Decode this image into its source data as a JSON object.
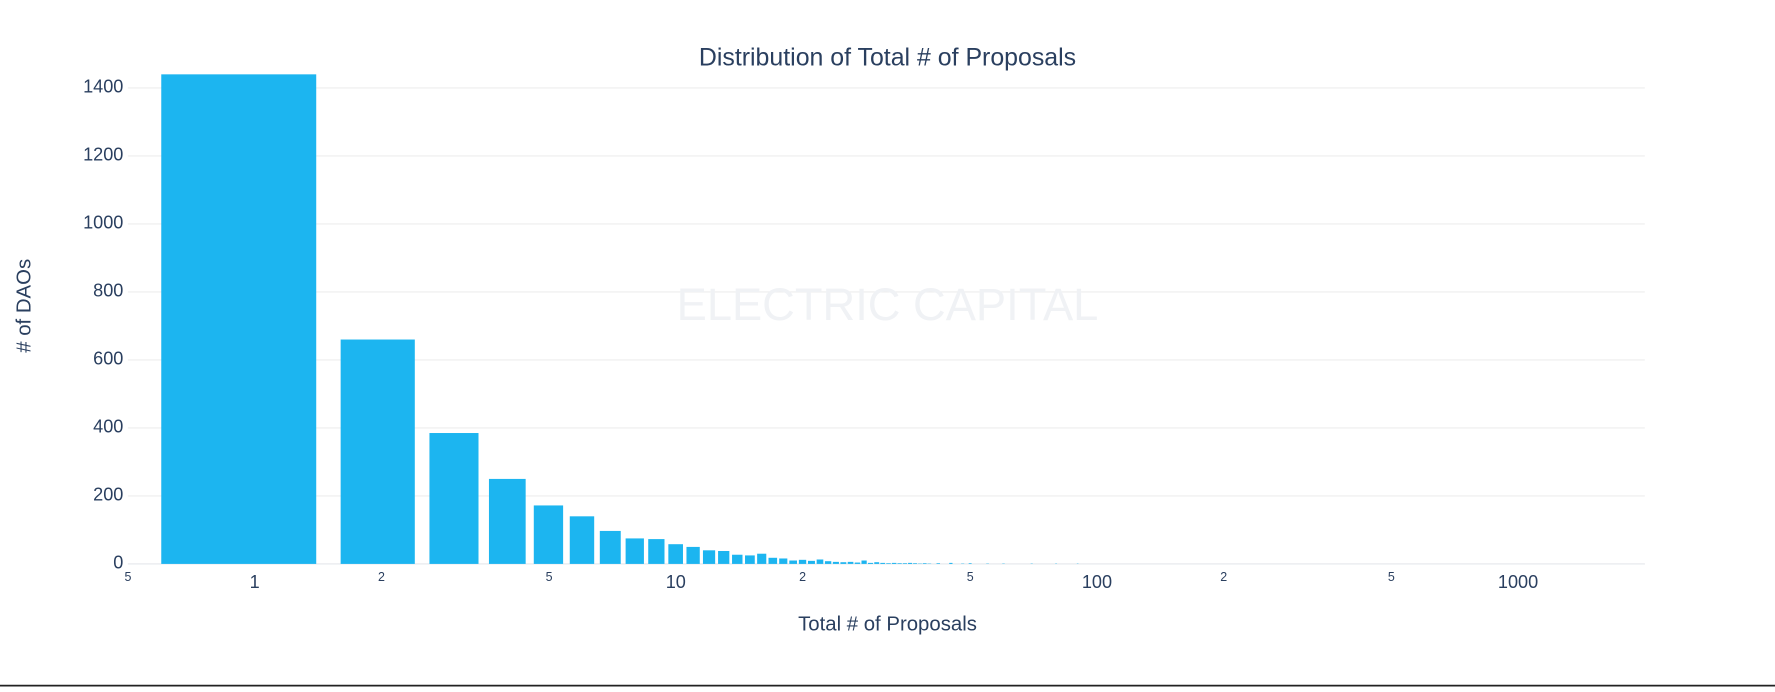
{
  "chart_data": {
    "type": "bar",
    "title": "Distribution of Total # of Proposals",
    "watermark": "ELECTRIC CAPITAL",
    "x_label": "Total # of Proposals",
    "y_label": "# of DAOs",
    "x_scale": "log",
    "color": "#1cb5f0",
    "grid": true,
    "x": [
      1,
      2,
      3,
      4,
      5,
      6,
      7,
      8,
      9,
      10,
      11,
      12,
      13,
      14,
      15,
      16,
      17,
      18,
      19,
      20,
      21,
      22,
      23,
      24,
      25,
      26,
      27,
      28,
      29,
      30,
      31,
      32,
      33,
      34,
      35,
      36,
      37,
      38,
      39,
      40,
      42,
      45,
      48,
      50,
      55,
      60,
      70,
      80,
      90
    ],
    "values": [
      1440,
      660,
      385,
      250,
      172,
      140,
      97,
      75,
      73,
      58,
      50,
      40,
      38,
      27,
      25,
      30,
      18,
      16,
      10,
      12,
      9,
      13,
      8,
      6,
      5,
      6,
      4,
      10,
      3,
      5,
      3,
      2,
      3,
      2,
      2,
      3,
      2,
      1,
      2,
      1,
      2,
      3,
      1,
      2,
      1,
      1,
      1,
      1,
      1
    ],
    "xlim": [
      0.5,
      2000
    ],
    "ylim": [
      0,
      1515
    ],
    "xticks": [
      {
        "value": 0.5,
        "label": "5"
      },
      1,
      {
        "value": 2,
        "label": "2"
      },
      {
        "value": 5,
        "label": "5"
      },
      10,
      {
        "value": 20,
        "label": "2"
      },
      {
        "value": 50,
        "label": "5"
      },
      100,
      {
        "value": 200,
        "label": "2"
      },
      {
        "value": 500,
        "label": "5"
      },
      1000
    ],
    "yticks": [
      0,
      200,
      400,
      600,
      800,
      1000,
      1200,
      1400
    ]
  }
}
